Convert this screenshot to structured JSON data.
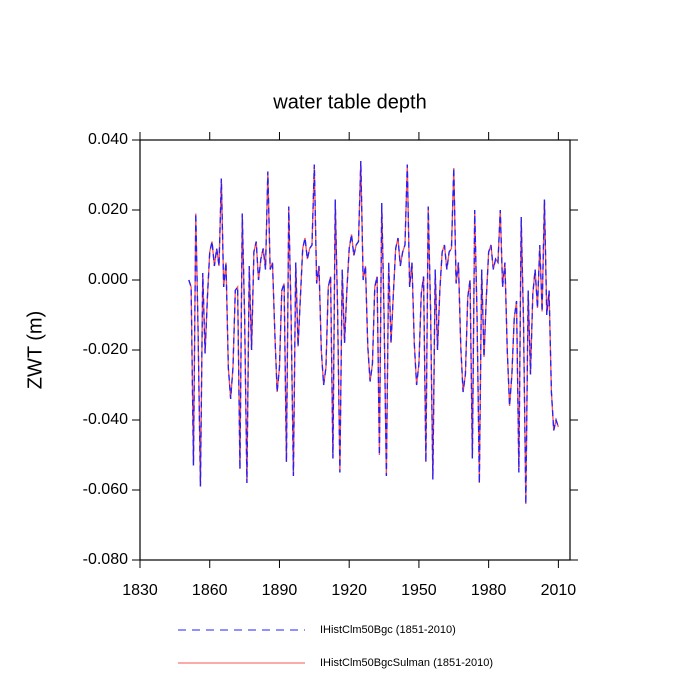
{
  "chart_data": {
    "type": "line",
    "title": "water table depth",
    "y_label": "ZWT  (m)",
    "x": [
      1851,
      1852,
      1853,
      1854,
      1855,
      1856,
      1857,
      1858,
      1859,
      1860,
      1861,
      1862,
      1863,
      1864,
      1865,
      1866,
      1867,
      1868,
      1869,
      1870,
      1871,
      1872,
      1873,
      1874,
      1875,
      1876,
      1877,
      1878,
      1879,
      1880,
      1881,
      1882,
      1883,
      1884,
      1885,
      1886,
      1887,
      1888,
      1889,
      1890,
      1891,
      1892,
      1893,
      1894,
      1895,
      1896,
      1897,
      1898,
      1899,
      1900,
      1901,
      1902,
      1903,
      1904,
      1905,
      1906,
      1907,
      1908,
      1909,
      1910,
      1911,
      1912,
      1913,
      1914,
      1915,
      1916,
      1917,
      1918,
      1919,
      1920,
      1921,
      1922,
      1923,
      1924,
      1925,
      1926,
      1927,
      1928,
      1929,
      1930,
      1931,
      1932,
      1933,
      1934,
      1935,
      1936,
      1937,
      1938,
      1939,
      1940,
      1941,
      1942,
      1943,
      1944,
      1945,
      1946,
      1947,
      1948,
      1949,
      1950,
      1951,
      1952,
      1953,
      1954,
      1955,
      1956,
      1957,
      1958,
      1959,
      1960,
      1961,
      1962,
      1963,
      1964,
      1965,
      1966,
      1967,
      1968,
      1969,
      1970,
      1971,
      1972,
      1973,
      1974,
      1975,
      1976,
      1977,
      1978,
      1979,
      1980,
      1981,
      1982,
      1983,
      1984,
      1985,
      1986,
      1987,
      1988,
      1989,
      1990,
      1991,
      1992,
      1993,
      1994,
      1995,
      1996,
      1997,
      1998,
      1999,
      2000,
      2001,
      2002,
      2003,
      2004,
      2005,
      2006,
      2007,
      2008,
      2009,
      2010
    ],
    "series": [
      {
        "name": "IHistClm50BgcSulman (1851-2010)",
        "color": "#ff5050",
        "style": "solid",
        "values": [
          0.0,
          -0.002,
          -0.053,
          0.019,
          -0.015,
          -0.059,
          0.002,
          -0.021,
          -0.005,
          0.008,
          0.011,
          0.004,
          0.009,
          0.004,
          0.029,
          -0.002,
          0.005,
          -0.025,
          -0.034,
          -0.025,
          -0.003,
          -0.002,
          -0.054,
          0.019,
          -0.01,
          -0.058,
          0.004,
          -0.02,
          0.008,
          0.011,
          0.0,
          0.006,
          0.009,
          0.003,
          0.031,
          0.003,
          0.005,
          -0.015,
          -0.032,
          -0.025,
          -0.003,
          -0.001,
          -0.052,
          0.021,
          -0.01,
          -0.056,
          0.005,
          -0.019,
          -0.005,
          0.009,
          0.012,
          0.006,
          0.009,
          0.01,
          0.033,
          -0.001,
          0.004,
          -0.02,
          -0.03,
          -0.025,
          -0.002,
          0.001,
          -0.051,
          0.023,
          -0.008,
          -0.055,
          0.003,
          -0.018,
          -0.003,
          0.009,
          0.013,
          0.007,
          0.01,
          0.011,
          0.034,
          0.0,
          0.004,
          -0.019,
          -0.029,
          -0.024,
          -0.002,
          0.001,
          -0.05,
          0.022,
          -0.01,
          -0.056,
          0.005,
          -0.018,
          -0.004,
          0.009,
          0.012,
          0.004,
          0.008,
          0.01,
          0.033,
          -0.002,
          0.005,
          -0.018,
          -0.03,
          -0.024,
          -0.004,
          0.001,
          -0.052,
          0.021,
          -0.008,
          -0.057,
          0.003,
          -0.02,
          -0.003,
          0.008,
          0.01,
          0.003,
          0.008,
          0.009,
          0.032,
          -0.001,
          0.005,
          -0.019,
          -0.032,
          -0.027,
          -0.005,
          0.0,
          -0.051,
          0.02,
          -0.01,
          -0.058,
          0.003,
          -0.022,
          -0.005,
          0.008,
          0.01,
          0.003,
          0.006,
          0.005,
          0.02,
          -0.002,
          0.005,
          -0.02,
          -0.036,
          -0.027,
          -0.011,
          -0.006,
          -0.055,
          0.018,
          -0.012,
          -0.064,
          -0.003,
          -0.027,
          -0.004,
          0.003,
          -0.008,
          0.01,
          -0.009,
          0.023,
          -0.01,
          -0.003,
          -0.032,
          -0.043,
          -0.04,
          -0.042
        ]
      },
      {
        "name": "IHistClm50Bgc (1851-2010)",
        "color": "#2020ff",
        "style": "dashed",
        "values": [
          0.0,
          -0.002,
          -0.053,
          0.019,
          -0.015,
          -0.059,
          0.002,
          -0.021,
          -0.005,
          0.008,
          0.011,
          0.004,
          0.009,
          0.004,
          0.029,
          -0.002,
          0.005,
          -0.025,
          -0.034,
          -0.025,
          -0.003,
          -0.002,
          -0.054,
          0.019,
          -0.01,
          -0.058,
          0.004,
          -0.02,
          0.008,
          0.011,
          0.0,
          0.006,
          0.009,
          0.003,
          0.031,
          0.003,
          0.005,
          -0.015,
          -0.032,
          -0.025,
          -0.003,
          -0.001,
          -0.052,
          0.021,
          -0.01,
          -0.056,
          0.005,
          -0.019,
          -0.005,
          0.009,
          0.012,
          0.006,
          0.009,
          0.01,
          0.033,
          -0.001,
          0.004,
          -0.02,
          -0.03,
          -0.025,
          -0.002,
          0.001,
          -0.051,
          0.023,
          -0.008,
          -0.055,
          0.003,
          -0.018,
          -0.003,
          0.009,
          0.013,
          0.007,
          0.01,
          0.011,
          0.034,
          0.0,
          0.004,
          -0.019,
          -0.029,
          -0.024,
          -0.002,
          0.001,
          -0.05,
          0.022,
          -0.01,
          -0.056,
          0.005,
          -0.018,
          -0.004,
          0.009,
          0.012,
          0.004,
          0.008,
          0.01,
          0.033,
          -0.002,
          0.005,
          -0.018,
          -0.03,
          -0.024,
          -0.004,
          0.001,
          -0.052,
          0.021,
          -0.008,
          -0.057,
          0.003,
          -0.02,
          -0.003,
          0.008,
          0.01,
          0.003,
          0.008,
          0.009,
          0.032,
          -0.001,
          0.005,
          -0.019,
          -0.032,
          -0.027,
          -0.005,
          0.0,
          -0.051,
          0.02,
          -0.01,
          -0.058,
          0.003,
          -0.022,
          -0.005,
          0.008,
          0.01,
          0.003,
          0.006,
          0.005,
          0.02,
          -0.002,
          0.005,
          -0.02,
          -0.036,
          -0.027,
          -0.011,
          -0.006,
          -0.055,
          0.018,
          -0.012,
          -0.064,
          -0.003,
          -0.027,
          -0.004,
          0.003,
          -0.008,
          0.01,
          -0.009,
          0.023,
          -0.01,
          -0.003,
          -0.032,
          -0.043,
          -0.04,
          -0.042
        ]
      }
    ],
    "xlim": [
      1830,
      2015
    ],
    "xticks": [
      1830,
      1860,
      1890,
      1920,
      1950,
      1980,
      2010
    ],
    "ylim": [
      -0.08,
      0.04
    ],
    "yticks": [
      {
        "value": -0.08,
        "label": "-0.080"
      },
      {
        "value": -0.06,
        "label": "-0.060"
      },
      {
        "value": -0.04,
        "label": "-0.040"
      },
      {
        "value": -0.02,
        "label": "-0.020"
      },
      {
        "value": 0,
        "label": "0.000"
      },
      {
        "value": 0.02,
        "label": "0.020"
      },
      {
        "value": 0.04,
        "label": "0.040"
      }
    ],
    "legend_order": [
      1,
      0
    ]
  }
}
